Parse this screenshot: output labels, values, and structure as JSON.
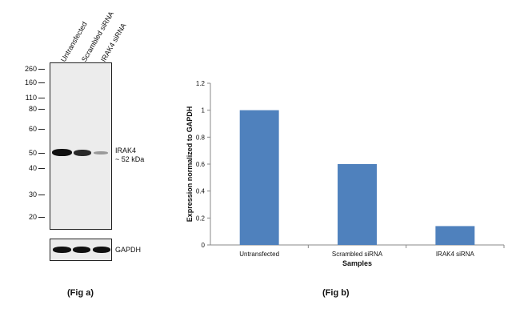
{
  "fig_a": {
    "caption": "(Fig a)",
    "lanes": [
      "Untransfected",
      "Scrambled siRNA",
      "IRAK4 siRNA"
    ],
    "markers": [
      "260",
      "160",
      "110",
      "80",
      "60",
      "50",
      "40",
      "30",
      "20"
    ],
    "band_label_1": "IRAK4",
    "band_label_2": "~ 52 kDa",
    "gapdh_label": "GAPDH"
  },
  "fig_b": {
    "caption": "(Fig b)"
  },
  "chart_data": {
    "type": "bar",
    "categories": [
      "Untransfected",
      "Scrambled siRNA",
      "IRAK4 siRNA"
    ],
    "values": [
      1.0,
      0.6,
      0.14
    ],
    "yticks": [
      "0",
      "0.2",
      "0.4",
      "0.6",
      "0.8",
      "1",
      "1.2"
    ],
    "xlabel": "Samples",
    "ylabel": "Expression normalized to GAPDH",
    "ylim": [
      0,
      1.2
    ],
    "grid": false,
    "bar_color": "#4f81bd"
  }
}
